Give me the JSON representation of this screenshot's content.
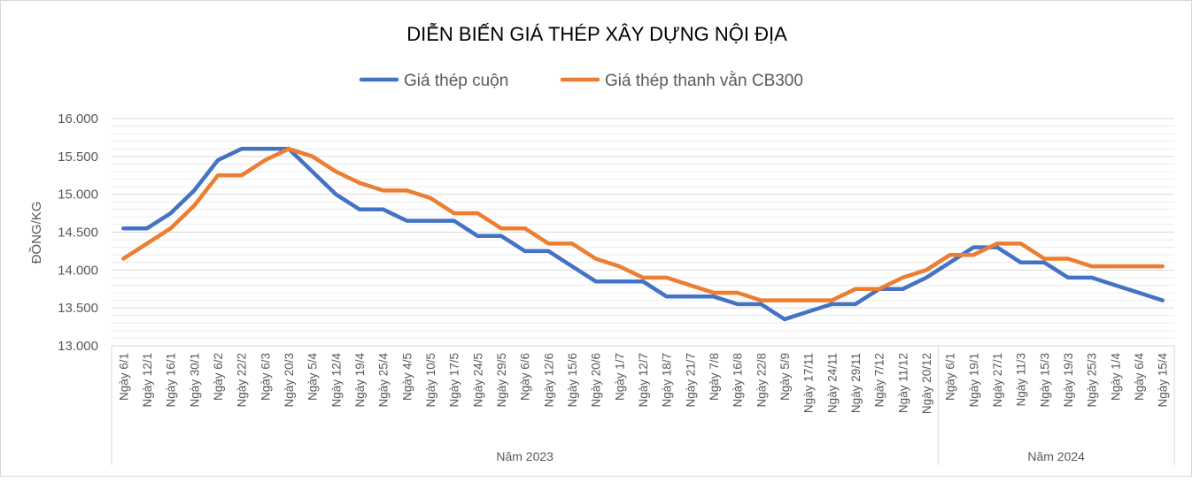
{
  "chart_data": {
    "type": "line",
    "title": "DIỄN BIẾN GIÁ THÉP XÂY DỰNG NỘI ĐỊA",
    "ylabel": "ĐỒNG/KG",
    "xlabel": "",
    "ylim": [
      13000,
      16000
    ],
    "yticks": [
      "13.000",
      "13.500",
      "14.000",
      "14.500",
      "15.000",
      "15.500",
      "16.000"
    ],
    "ytick_values": [
      13000,
      13500,
      14000,
      14500,
      15000,
      15500,
      16000
    ],
    "grid": true,
    "legend_position": "top",
    "groups": [
      {
        "label": "Năm 2023",
        "count": 35
      },
      {
        "label": "Năm 2024",
        "count": 10
      }
    ],
    "categories": [
      "Ngày 6/1",
      "Ngày 12/1",
      "Ngày 16/1",
      "Ngày 30/1",
      "Ngày 6/2",
      "Ngày 22/2",
      "Ngày 6/3",
      "Ngày 20/3",
      "Ngày 5/4",
      "Ngày 12/4",
      "Ngày 19/4",
      "Ngày 25/4",
      "Ngày 4/5",
      "Ngày 10/5",
      "Ngày 17/5",
      "Ngày 24/5",
      "Ngày 29/5",
      "Ngày 6/6",
      "Ngày 12/6",
      "Ngày 15/6",
      "Ngày 20/6",
      "Ngày 1/7",
      "Ngày 12/7",
      "Ngày 18/7",
      "Ngày 21/7",
      "Ngày 7/8",
      "Ngày 16/8",
      "Ngày 22/8",
      "Ngày 5/9",
      "Ngày 17/11",
      "Ngày 24/11",
      "Ngày 29/11",
      "Ngày 7/12",
      "Ngày 11/12",
      "Ngày 20/12",
      "Ngày 6/1",
      "Ngày 19/1",
      "Ngày 27/1",
      "Ngày 11/3",
      "Ngày 15/3",
      "Ngày 19/3",
      "Ngày 25/3",
      "Ngày 1/4",
      "Ngày 6/4",
      "Ngày 15/4"
    ],
    "series": [
      {
        "name": "Giá thép cuộn",
        "color": "#4472c4",
        "values": [
          14550,
          14550,
          14750,
          15050,
          15450,
          15600,
          15600,
          15600,
          15300,
          15000,
          14800,
          14800,
          14650,
          14650,
          14650,
          14450,
          14450,
          14250,
          14250,
          14050,
          13850,
          13850,
          13850,
          13650,
          13650,
          13650,
          13550,
          13550,
          13350,
          13450,
          13550,
          13550,
          13750,
          13750,
          13900,
          14100,
          14300,
          14300,
          14100,
          14100,
          13900,
          13900,
          13800,
          13700,
          13600
        ]
      },
      {
        "name": "Giá thép thanh vằn CB300",
        "color": "#ed7d31",
        "values": [
          14150,
          14350,
          14550,
          14850,
          15250,
          15250,
          15450,
          15600,
          15500,
          15300,
          15150,
          15050,
          15050,
          14950,
          14750,
          14750,
          14550,
          14550,
          14350,
          14350,
          14150,
          14050,
          13900,
          13900,
          13800,
          13700,
          13700,
          13600,
          13600,
          13600,
          13600,
          13750,
          13750,
          13900,
          14000,
          14200,
          14200,
          14350,
          14350,
          14150,
          14150,
          14050,
          14050,
          14050,
          14050
        ]
      }
    ]
  }
}
